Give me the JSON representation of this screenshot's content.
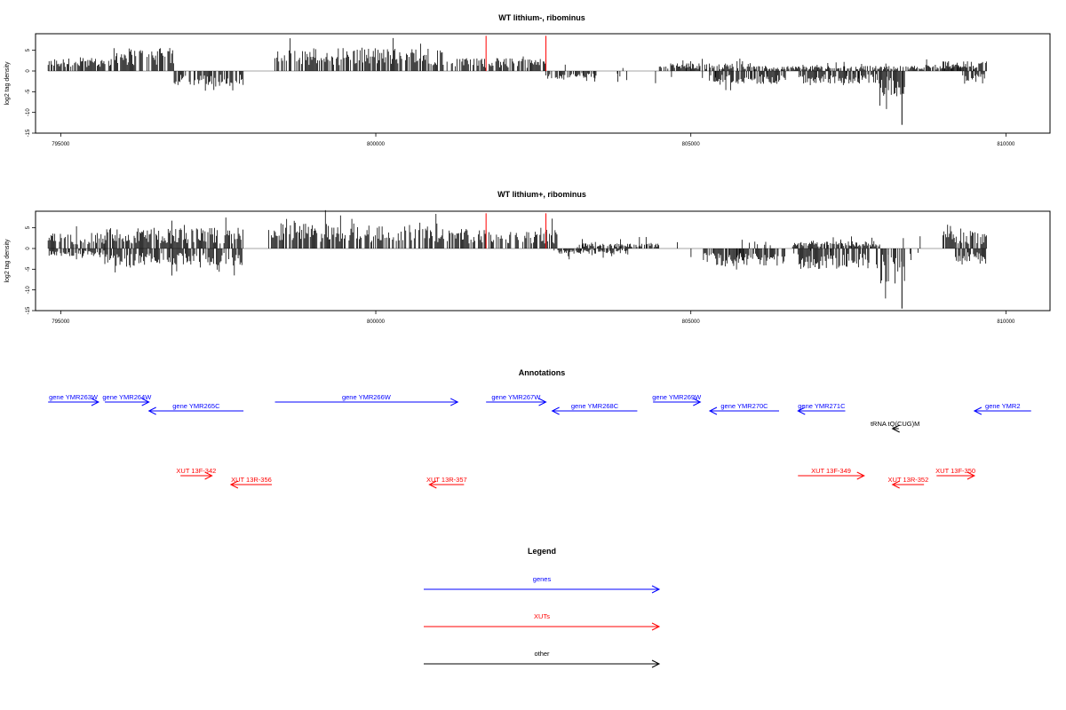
{
  "chart_data": [
    {
      "type": "bar",
      "title": "WT lithium-, ribominus",
      "ylabel": "log2 tag density",
      "xlim": [
        794600,
        810700
      ],
      "ylim": [
        -15,
        9
      ],
      "x_ticks": [
        795000,
        800000,
        805000,
        810000
      ],
      "y_ticks": [
        -15,
        -10,
        -5,
        0,
        5
      ],
      "x_tick_labels": [
        "795000",
        "800000",
        "805000",
        "810000"
      ],
      "y_tick_labels": [
        "-15",
        "-10",
        "-5",
        "0",
        "5"
      ],
      "baseline": 0,
      "color": "#000000",
      "positive_regions": [
        {
          "x": [
            794800,
            795800
          ],
          "level": 2.5
        },
        {
          "x": [
            795800,
            796800
          ],
          "level": 4.5
        },
        {
          "x": [
            798400,
            801200
          ],
          "level": 4.5
        },
        {
          "x": [
            801200,
            802700
          ],
          "level": 2.5
        },
        {
          "x": [
            804500,
            806000
          ],
          "level": 1.5
        },
        {
          "x": [
            806000,
            809500
          ],
          "level": 1.0
        },
        {
          "x": [
            809000,
            809700
          ],
          "level": 2.0
        }
      ],
      "negative_regions": [
        {
          "x": [
            796800,
            797900
          ],
          "level": -3.0
        },
        {
          "x": [
            802700,
            803500
          ],
          "level": -1.5
        },
        {
          "x": [
            805300,
            806500
          ],
          "level": -2.5
        },
        {
          "x": [
            806700,
            808000
          ],
          "level": -2.5
        },
        {
          "x": [
            808000,
            808400
          ],
          "level": -5.0
        },
        {
          "x": [
            809300,
            809700
          ],
          "level": -2.5
        }
      ],
      "marked_positions": {
        "color": "#ff0000",
        "x": [
          801750,
          802700
        ],
        "y": 8.5
      },
      "extreme_points": [
        {
          "x": 808350,
          "y": -13
        }
      ]
    },
    {
      "type": "bar",
      "title": "WT lithium+, ribominus",
      "ylabel": "log2 tag density",
      "xlim": [
        794600,
        810700
      ],
      "ylim": [
        -15,
        9
      ],
      "x_ticks": [
        795000,
        800000,
        805000,
        810000
      ],
      "y_ticks": [
        -15,
        -10,
        -5,
        0,
        5
      ],
      "x_tick_labels": [
        "795000",
        "800000",
        "805000",
        "810000"
      ],
      "y_tick_labels": [
        "-15",
        "-10",
        "-5",
        "0",
        "5"
      ],
      "baseline": 0,
      "color": "#000000",
      "positive_regions": [
        {
          "x": [
            794800,
            795700
          ],
          "level": 3.0
        },
        {
          "x": [
            795700,
            797900
          ],
          "level": 4.0
        },
        {
          "x": [
            798300,
            801000
          ],
          "level": 5.0
        },
        {
          "x": [
            801000,
            802900
          ],
          "level": 4.0
        },
        {
          "x": [
            803200,
            804500
          ],
          "level": 1.0
        },
        {
          "x": [
            806600,
            808000
          ],
          "level": 1.5
        },
        {
          "x": [
            809000,
            809700
          ],
          "level": 3.5
        }
      ],
      "negative_regions": [
        {
          "x": [
            794800,
            795700
          ],
          "level": -1.5
        },
        {
          "x": [
            795700,
            797900
          ],
          "level": -3.5
        },
        {
          "x": [
            802800,
            804000
          ],
          "level": -1.0
        },
        {
          "x": [
            805200,
            806500
          ],
          "level": -3.5
        },
        {
          "x": [
            806700,
            808000
          ],
          "level": -4.0
        },
        {
          "x": [
            808000,
            808400
          ],
          "level": -7.0
        },
        {
          "x": [
            809200,
            809700
          ],
          "level": -3.0
        }
      ],
      "marked_positions": {
        "color": "#ff0000",
        "x": [
          801750,
          802700
        ],
        "y": 8.5
      },
      "extreme_points": [
        {
          "x": 808350,
          "y": -14.5
        }
      ]
    }
  ],
  "annotations": {
    "title": "Annotations",
    "colors": {
      "gene": "#0000ff",
      "xut": "#ff0000",
      "other": "#000000"
    },
    "features": [
      {
        "label": "gene YMR263W",
        "type": "gene",
        "start": 794800,
        "end": 795600,
        "dir": "+",
        "row": 0
      },
      {
        "label": "gene YMR264W",
        "type": "gene",
        "start": 795700,
        "end": 796400,
        "dir": "+",
        "row": 0
      },
      {
        "label": "gene YMR265C",
        "type": "gene",
        "start": 796400,
        "end": 797900,
        "dir": "-",
        "row": 1
      },
      {
        "label": "gene YMR266W",
        "type": "gene",
        "start": 798400,
        "end": 801300,
        "dir": "+",
        "row": 0
      },
      {
        "label": "gene YMR267W",
        "type": "gene",
        "start": 801750,
        "end": 802700,
        "dir": "+",
        "row": 0
      },
      {
        "label": "gene YMR268C",
        "type": "gene",
        "start": 802800,
        "end": 804150,
        "dir": "-",
        "row": 1
      },
      {
        "label": "gene YMR269W",
        "type": "gene",
        "start": 804400,
        "end": 805150,
        "dir": "+",
        "row": 0
      },
      {
        "label": "gene YMR270C",
        "type": "gene",
        "start": 805300,
        "end": 806400,
        "dir": "-",
        "row": 1
      },
      {
        "label": "gene YMR271C",
        "type": "gene",
        "start": 806700,
        "end": 807450,
        "dir": "-",
        "row": 1
      },
      {
        "label": "gene YMR2",
        "type": "gene",
        "start": 809500,
        "end": 810400,
        "dir": "-",
        "row": 1
      },
      {
        "label": "tRNA tQ(CUG)M",
        "type": "other",
        "start": 808200,
        "end": 808300,
        "dir": "-",
        "row": 2
      },
      {
        "label": "XUT 13F-342",
        "type": "xut",
        "start": 796900,
        "end": 797400,
        "dir": "+",
        "row": 4
      },
      {
        "label": "XUT 13R-356",
        "type": "xut",
        "start": 797700,
        "end": 798350,
        "dir": "-",
        "row": 5
      },
      {
        "label": "XUT 13R-357",
        "type": "xut",
        "start": 800850,
        "end": 801400,
        "dir": "-",
        "row": 5
      },
      {
        "label": "XUT 13F-349",
        "type": "xut",
        "start": 806700,
        "end": 807750,
        "dir": "+",
        "row": 4
      },
      {
        "label": "XUT 13R-352",
        "type": "xut",
        "start": 808200,
        "end": 808700,
        "dir": "-",
        "row": 5
      },
      {
        "label": "XUT 13F-350",
        "type": "xut",
        "start": 808900,
        "end": 809500,
        "dir": "+",
        "row": 4
      }
    ]
  },
  "legend": {
    "title": "Legend",
    "items": [
      {
        "label": "genes",
        "color": "#0000ff"
      },
      {
        "label": "XUTs",
        "color": "#ff0000"
      },
      {
        "label": "other",
        "color": "#000000"
      }
    ]
  }
}
